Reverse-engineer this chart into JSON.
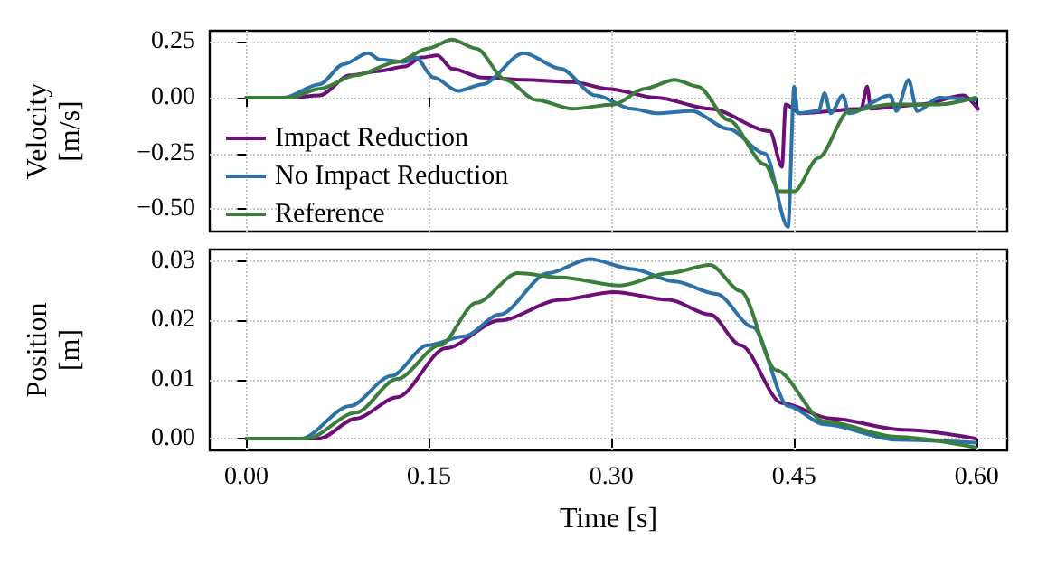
{
  "chart_data": [
    {
      "type": "line",
      "ylabel": "Velocity\n[m/s]",
      "xlim": [
        -0.03,
        0.625
      ],
      "ylim": [
        -0.6,
        0.3
      ],
      "xticks": [
        0,
        0.15,
        0.3,
        0.45,
        0.6
      ],
      "yticks": [
        {
          "value": -0.5,
          "label": "−0.50"
        },
        {
          "value": -0.25,
          "label": "−0.25"
        },
        {
          "value": 0,
          "label": "0.00"
        },
        {
          "value": 0.25,
          "label": "0.25"
        }
      ],
      "tick_labels": "y",
      "grid": true,
      "legend": "bottom left",
      "marker": "none",
      "line_style": "solid",
      "series": [
        {
          "name": "Impact Reduction",
          "color": "#6c1078",
          "x": [
            0,
            0.036,
            0.06,
            0.085,
            0.11,
            0.13,
            0.144,
            0.157,
            0.169,
            0.194,
            0.228,
            0.268,
            0.297,
            0.337,
            0.381,
            0.43,
            0.44,
            0.443,
            0.455,
            0.505,
            0.51,
            0.513,
            0.554,
            0.589,
            0.601
          ],
          "values": [
            0,
            0,
            0.01,
            0.1,
            0.12,
            0.14,
            0.18,
            0.19,
            0.13,
            0.09,
            0.08,
            0.07,
            0.04,
            0,
            -0.05,
            -0.15,
            -0.31,
            -0.03,
            -0.07,
            -0.05,
            0.05,
            -0.05,
            -0.03,
            0.01,
            -0.05
          ]
        },
        {
          "name": "No Impact Reduction",
          "color": "#2c72a8",
          "x": [
            0,
            0.031,
            0.06,
            0.08,
            0.1,
            0.11,
            0.13,
            0.139,
            0.154,
            0.174,
            0.194,
            0.228,
            0.258,
            0.287,
            0.317,
            0.337,
            0.366,
            0.396,
            0.426,
            0.445,
            0.45,
            0.453,
            0.47,
            0.475,
            0.48,
            0.49,
            0.495,
            0.529,
            0.534,
            0.544,
            0.551,
            0.569,
            0.599
          ],
          "values": [
            0,
            0,
            0.06,
            0.15,
            0.2,
            0.17,
            0.16,
            0.18,
            0.09,
            0.03,
            0.06,
            0.2,
            0.13,
            0.01,
            -0.05,
            -0.07,
            -0.06,
            -0.14,
            -0.25,
            -0.58,
            0.05,
            -0.07,
            -0.06,
            0.02,
            -0.07,
            0.01,
            -0.07,
            0.01,
            -0.06,
            0.08,
            -0.06,
            0,
            -0.01
          ]
        },
        {
          "name": "Reference",
          "color": "#3b7d3b",
          "x": [
            0,
            0.036,
            0.06,
            0.09,
            0.124,
            0.149,
            0.169,
            0.189,
            0.213,
            0.238,
            0.268,
            0.302,
            0.327,
            0.352,
            0.371,
            0.396,
            0.426,
            0.438,
            0.45,
            0.47,
            0.495,
            0.529,
            0.569,
            0.599
          ],
          "values": [
            0,
            0,
            0.04,
            0.1,
            0.16,
            0.22,
            0.26,
            0.22,
            0.08,
            -0.01,
            -0.05,
            -0.03,
            0.04,
            0.08,
            0.05,
            -0.1,
            -0.3,
            -0.42,
            -0.42,
            -0.27,
            -0.06,
            -0.03,
            -0.03,
            0
          ]
        }
      ]
    },
    {
      "type": "line",
      "xlabel": "Time [s]",
      "ylabel": "Position\n[m]",
      "xlim": [
        -0.03,
        0.625
      ],
      "ylim": [
        -0.002,
        0.032
      ],
      "xticks": [
        {
          "value": 0,
          "label": "0.00"
        },
        {
          "value": 0.15,
          "label": "0.15"
        },
        {
          "value": 0.3,
          "label": "0.30"
        },
        {
          "value": 0.45,
          "label": "0.45"
        },
        {
          "value": 0.6,
          "label": "0.60"
        }
      ],
      "yticks": [
        {
          "value": 0,
          "label": "0.00"
        },
        {
          "value": 0.01,
          "label": "0.01"
        },
        {
          "value": 0.02,
          "label": "0.02"
        },
        {
          "value": 0.03,
          "label": "0.03"
        }
      ],
      "grid": true,
      "marker": "none",
      "line_style": "solid",
      "series": [
        {
          "color": "#6c1078",
          "x": [
            0,
            0.06,
            0.09,
            0.124,
            0.164,
            0.208,
            0.258,
            0.302,
            0.347,
            0.381,
            0.406,
            0.44,
            0.48,
            0.539,
            0.599
          ],
          "values": [
            0,
            0,
            0.0034,
            0.007,
            0.0153,
            0.02,
            0.0235,
            0.0248,
            0.0235,
            0.021,
            0.0158,
            0.006,
            0.0034,
            0.0015,
            0
          ]
        },
        {
          "color": "#2c72a8",
          "x": [
            0,
            0.045,
            0.085,
            0.119,
            0.149,
            0.179,
            0.208,
            0.248,
            0.282,
            0.317,
            0.352,
            0.386,
            0.416,
            0.445,
            0.475,
            0.534,
            0.599
          ],
          "values": [
            0,
            0,
            0.0055,
            0.0106,
            0.0158,
            0.0173,
            0.021,
            0.028,
            0.0304,
            0.0287,
            0.0266,
            0.0245,
            0.0189,
            0.0055,
            0.0024,
            -0.0002,
            -0.0007
          ]
        },
        {
          "color": "#3b7d3b",
          "x": [
            0,
            0.05,
            0.09,
            0.124,
            0.159,
            0.189,
            0.223,
            0.258,
            0.307,
            0.347,
            0.381,
            0.406,
            0.435,
            0.475,
            0.534,
            0.599
          ],
          "values": [
            0,
            0,
            0.0044,
            0.0101,
            0.0158,
            0.023,
            0.028,
            0.0273,
            0.0259,
            0.028,
            0.0294,
            0.025,
            0.0116,
            0.0029,
            0.0003,
            -0.0015
          ]
        }
      ]
    }
  ]
}
